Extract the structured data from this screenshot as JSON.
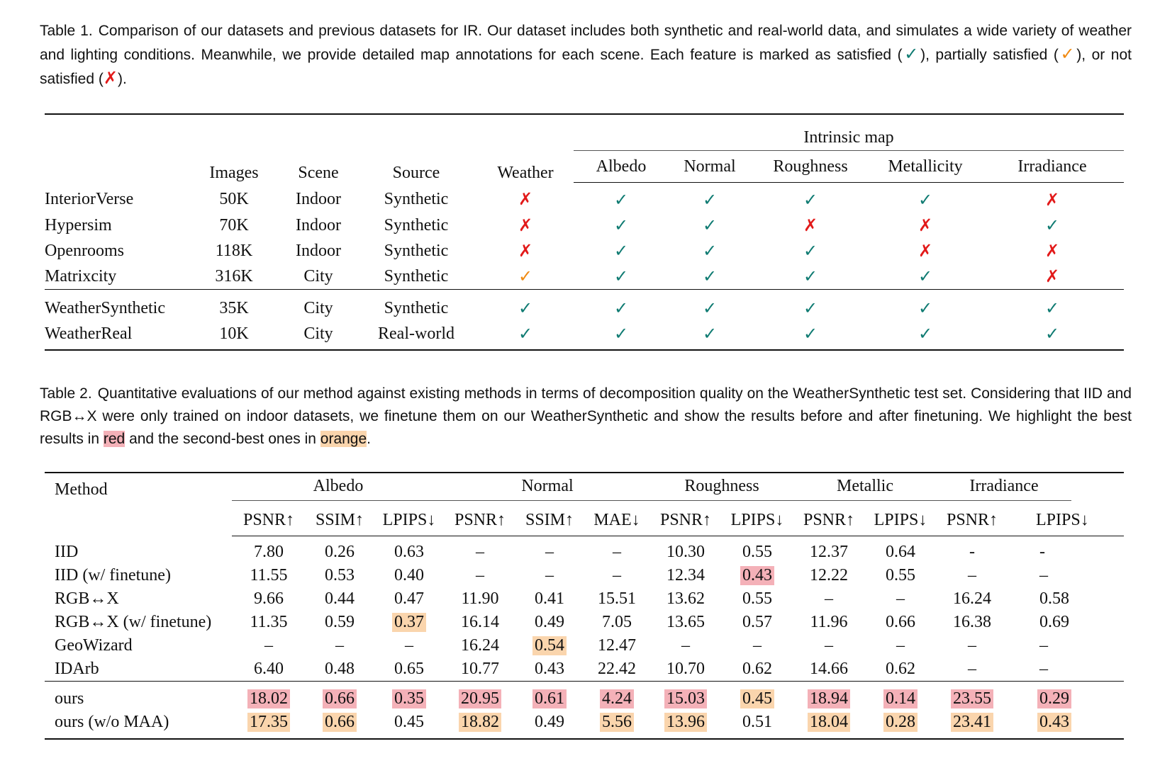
{
  "table1": {
    "label": "Table 1.",
    "caption_text": "Comparison of our datasets and previous datasets for IR. Our dataset includes both synthetic and real-world data, and simulates a wide variety of weather and lighting conditions. Meanwhile, we provide detailed map annotations for each scene. Each feature is marked as satisfied (",
    "caption_mid1": "), partially satisfied (",
    "caption_mid2": "), or not satisfied (",
    "caption_end": ").",
    "marks": {
      "yes": "✓",
      "part": "✓",
      "no": "✗"
    },
    "headers": {
      "images": "Images",
      "scene": "Scene",
      "source": "Source",
      "weather": "Weather",
      "intrinsic": "Intrinsic map",
      "sub": [
        "Albedo",
        "Normal",
        "Roughness",
        "Metallicity",
        "Irradiance"
      ]
    },
    "rows": [
      {
        "name": "InteriorVerse",
        "images": "50K",
        "scene": "Indoor",
        "source": "Synthetic",
        "flags": [
          "no",
          "yes",
          "yes",
          "yes",
          "yes",
          "no"
        ]
      },
      {
        "name": "Hypersim",
        "images": "70K",
        "scene": "Indoor",
        "source": "Synthetic",
        "flags": [
          "no",
          "yes",
          "yes",
          "no",
          "no",
          "yes"
        ]
      },
      {
        "name": "Openrooms",
        "images": "118K",
        "scene": "Indoor",
        "source": "Synthetic",
        "flags": [
          "no",
          "yes",
          "yes",
          "yes",
          "no",
          "no"
        ]
      },
      {
        "name": "Matrixcity",
        "images": "316K",
        "scene": "City",
        "source": "Synthetic",
        "flags": [
          "part",
          "yes",
          "yes",
          "yes",
          "yes",
          "no"
        ]
      },
      {
        "name": "WeatherSynthetic",
        "images": "35K",
        "scene": "City",
        "source": "Synthetic",
        "flags": [
          "yes",
          "yes",
          "yes",
          "yes",
          "yes",
          "yes"
        ]
      },
      {
        "name": "WeatherReal",
        "images": "10K",
        "scene": "City",
        "source": "Real-world",
        "flags": [
          "yes",
          "yes",
          "yes",
          "yes",
          "yes",
          "yes"
        ]
      }
    ]
  },
  "table2": {
    "label": "Table 2.",
    "caption_text": "Quantitative evaluations of our method against existing methods in terms of decomposition quality on the WeatherSynthetic test set. Considering that IID and RGB↔X were only trained on indoor datasets, we finetune them on our WeatherSynthetic and show the results before and after finetuning. We highlight the best results in",
    "caption_red": "red",
    "caption_and": "and the second-best ones in",
    "caption_orange": "orange",
    "caption_end": ".",
    "method_header": "Method",
    "groups": [
      "Albedo",
      "Normal",
      "Roughness",
      "Metallic",
      "Irradiance"
    ],
    "metrics": [
      "PSNR↑",
      "SSIM↑",
      "LPIPS↓",
      "PSNR↑",
      "SSIM↑",
      "MAE↓",
      "PSNR↑",
      "LPIPS↓",
      "PSNR↑",
      "LPIPS↓",
      "PSNR↑",
      "LPIPS↓"
    ],
    "rows": [
      {
        "name": "IID",
        "values": [
          "7.80",
          "0.26",
          "0.63",
          "–",
          "–",
          "–",
          "10.30",
          "0.55",
          "12.37",
          "0.64",
          "-",
          "-"
        ],
        "hl": [
          "",
          "",
          "",
          "",
          "",
          "",
          "",
          "",
          "",
          "",
          "",
          ""
        ]
      },
      {
        "name": "IID (w/ finetune)",
        "values": [
          "11.55",
          "0.53",
          "0.40",
          "–",
          "–",
          "–",
          "12.34",
          "0.43",
          "12.22",
          "0.55",
          "–",
          "–"
        ],
        "hl": [
          "",
          "",
          "",
          "",
          "",
          "",
          "",
          "red",
          "",
          "",
          "",
          ""
        ]
      },
      {
        "name": "RGB↔X",
        "values": [
          "9.66",
          "0.44",
          "0.47",
          "11.90",
          "0.41",
          "15.51",
          "13.62",
          "0.55",
          "–",
          "–",
          "16.24",
          "0.58"
        ],
        "hl": [
          "",
          "",
          "",
          "",
          "",
          "",
          "",
          "",
          "",
          "",
          "",
          ""
        ]
      },
      {
        "name": "RGB↔X (w/ finetune)",
        "values": [
          "11.35",
          "0.59",
          "0.37",
          "16.14",
          "0.49",
          "7.05",
          "13.65",
          "0.57",
          "11.96",
          "0.66",
          "16.38",
          "0.69"
        ],
        "hl": [
          "",
          "",
          "orange",
          "",
          "",
          "",
          "",
          "",
          "",
          "",
          "",
          ""
        ]
      },
      {
        "name": "GeoWizard",
        "values": [
          "–",
          "–",
          "–",
          "16.24",
          "0.54",
          "12.47",
          "–",
          "–",
          "–",
          "–",
          "–",
          "–"
        ],
        "hl": [
          "",
          "",
          "",
          "",
          "orange",
          "",
          "",
          "",
          "",
          "",
          "",
          ""
        ]
      },
      {
        "name": "IDArb",
        "values": [
          "6.40",
          "0.48",
          "0.65",
          "10.77",
          "0.43",
          "22.42",
          "10.70",
          "0.62",
          "14.66",
          "0.62",
          "–",
          "–"
        ],
        "hl": [
          "",
          "",
          "",
          "",
          "",
          "",
          "",
          "",
          "",
          "",
          "",
          ""
        ]
      },
      {
        "name": "ours",
        "values": [
          "18.02",
          "0.66",
          "0.35",
          "20.95",
          "0.61",
          "4.24",
          "15.03",
          "0.45",
          "18.94",
          "0.14",
          "23.55",
          "0.29"
        ],
        "hl": [
          "red",
          "red",
          "red",
          "red",
          "red",
          "red",
          "red",
          "orange",
          "red",
          "red",
          "red",
          "red"
        ]
      },
      {
        "name": "ours (w/o MAA)",
        "values": [
          "17.35",
          "0.66",
          "0.45",
          "18.82",
          "0.49",
          "5.56",
          "13.96",
          "0.51",
          "18.04",
          "0.28",
          "23.41",
          "0.43"
        ],
        "hl": [
          "orange",
          "orange",
          "",
          "orange",
          "",
          "orange",
          "orange",
          "",
          "orange",
          "orange",
          "orange",
          "orange"
        ]
      }
    ]
  }
}
